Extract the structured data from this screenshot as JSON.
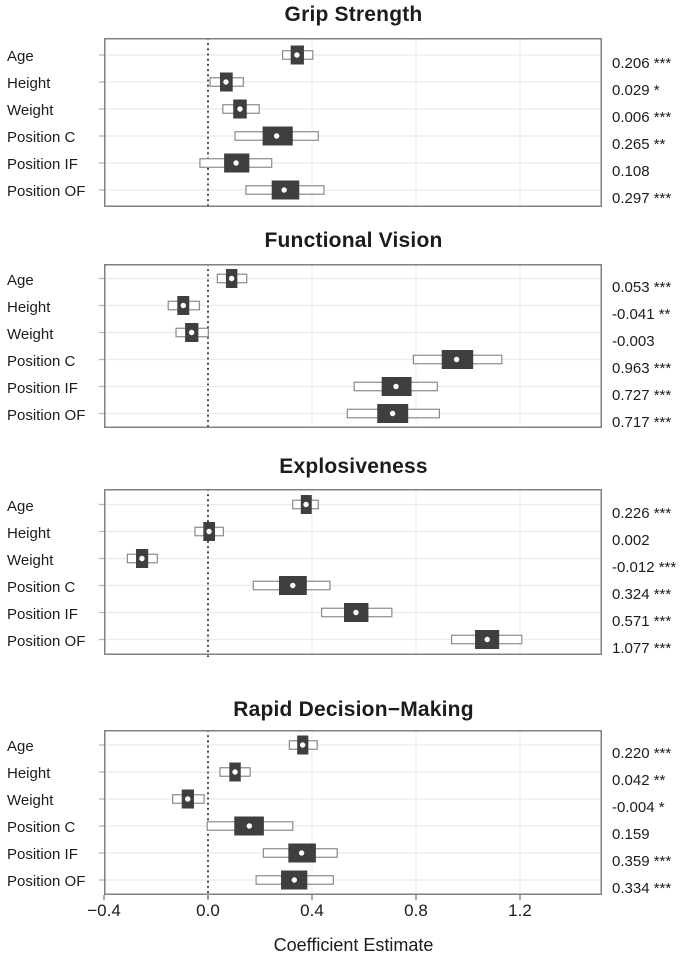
{
  "figure": {
    "xlabel": "Coefficient Estimate",
    "x_ticks": [
      {
        "v": -0.4,
        "label": "−0.4"
      },
      {
        "v": 0.0,
        "label": "0.0"
      },
      {
        "v": 0.4,
        "label": "0.4"
      },
      {
        "v": 0.8,
        "label": "0.8"
      },
      {
        "v": 1.2,
        "label": "1.2"
      }
    ],
    "xlim": [
      -0.4,
      1.515
    ],
    "colors": {
      "inner_box": "#3f3f3f",
      "outer_box_fill": "#ffffff",
      "outer_box_border": "#8a8a8a",
      "plot_border": "#808080",
      "grid": "#ebebeb",
      "axis_tick": "#b8b8b8",
      "bottom_tick": "#888888",
      "zero_line": "#161616",
      "point_dot": "#ffffff"
    }
  },
  "chart_data": [
    {
      "type": "forest-box",
      "title": "Grip Strength",
      "xlabel": "Coefficient Estimate",
      "categories": [
        "Age",
        "Height",
        "Weight",
        "Position C",
        "Position IF",
        "Position OF"
      ],
      "rows": [
        {
          "label": "Age",
          "estimate": "0.206 ***",
          "dot": 0.342,
          "inner": [
            0.318,
            0.369
          ],
          "outer": [
            0.287,
            0.403
          ]
        },
        {
          "label": "Height",
          "estimate": "0.029 *",
          "dot": 0.069,
          "inner": [
            0.046,
            0.095
          ],
          "outer": [
            0.008,
            0.136
          ]
        },
        {
          "label": "Weight",
          "estimate": "0.006 ***",
          "dot": 0.123,
          "inner": [
            0.097,
            0.149
          ],
          "outer": [
            0.057,
            0.197
          ]
        },
        {
          "label": "Position C",
          "estimate": "0.265 **",
          "dot": 0.264,
          "inner": [
            0.21,
            0.326
          ],
          "outer": [
            0.104,
            0.424
          ]
        },
        {
          "label": "Position IF",
          "estimate": "0.108",
          "dot": 0.108,
          "inner": [
            0.062,
            0.159
          ],
          "outer": [
            -0.031,
            0.245
          ]
        },
        {
          "label": "Position OF",
          "estimate": "0.297 ***",
          "dot": 0.293,
          "inner": [
            0.245,
            0.351
          ],
          "outer": [
            0.146,
            0.446
          ]
        }
      ]
    },
    {
      "type": "forest-box",
      "title": "Functional Vision",
      "xlabel": "Coefficient Estimate",
      "categories": [
        "Age",
        "Height",
        "Weight",
        "Position C",
        "Position IF",
        "Position OF"
      ],
      "rows": [
        {
          "label": "Age",
          "estimate": "0.053 ***",
          "dot": 0.091,
          "inner": [
            0.069,
            0.113
          ],
          "outer": [
            0.036,
            0.149
          ]
        },
        {
          "label": "Height",
          "estimate": "-0.041 **",
          "dot": -0.095,
          "inner": [
            -0.118,
            -0.072
          ],
          "outer": [
            -0.153,
            -0.033
          ]
        },
        {
          "label": "Weight",
          "estimate": "-0.003",
          "dot": -0.063,
          "inner": [
            -0.088,
            -0.037
          ],
          "outer": [
            -0.123,
            0.001
          ]
        },
        {
          "label": "Position C",
          "estimate": "0.963 ***",
          "dot": 0.956,
          "inner": [
            0.899,
            1.02
          ],
          "outer": [
            0.79,
            1.13
          ]
        },
        {
          "label": "Position IF",
          "estimate": "0.727 ***",
          "dot": 0.723,
          "inner": [
            0.668,
            0.783
          ],
          "outer": [
            0.562,
            0.882
          ]
        },
        {
          "label": "Position OF",
          "estimate": "0.717 ***",
          "dot": 0.71,
          "inner": [
            0.651,
            0.77
          ],
          "outer": [
            0.536,
            0.89
          ]
        }
      ]
    },
    {
      "type": "forest-box",
      "title": "Explosiveness",
      "xlabel": "Coefficient Estimate",
      "categories": [
        "Age",
        "Height",
        "Weight",
        "Position C",
        "Position IF",
        "Position OF"
      ],
      "rows": [
        {
          "label": "Age",
          "estimate": "0.226 ***",
          "dot": 0.377,
          "inner": [
            0.357,
            0.399
          ],
          "outer": [
            0.326,
            0.424
          ]
        },
        {
          "label": "Height",
          "estimate": "0.002",
          "dot": 0.004,
          "inner": [
            -0.018,
            0.027
          ],
          "outer": [
            -0.05,
            0.059
          ]
        },
        {
          "label": "Weight",
          "estimate": "-0.012 ***",
          "dot": -0.254,
          "inner": [
            -0.277,
            -0.23
          ],
          "outer": [
            -0.31,
            -0.195
          ]
        },
        {
          "label": "Position C",
          "estimate": "0.324 ***",
          "dot": 0.326,
          "inner": [
            0.273,
            0.38
          ],
          "outer": [
            0.174,
            0.469
          ]
        },
        {
          "label": "Position IF",
          "estimate": "0.571 ***",
          "dot": 0.569,
          "inner": [
            0.523,
            0.617
          ],
          "outer": [
            0.437,
            0.707
          ]
        },
        {
          "label": "Position OF",
          "estimate": "1.077 ***",
          "dot": 1.074,
          "inner": [
            1.027,
            1.12
          ],
          "outer": [
            0.937,
            1.207
          ]
        }
      ]
    },
    {
      "type": "forest-box",
      "title": "Rapid Decision−Making",
      "xlabel": "Coefficient Estimate",
      "categories": [
        "Age",
        "Height",
        "Weight",
        "Position C",
        "Position IF",
        "Position OF"
      ],
      "rows": [
        {
          "label": "Age",
          "estimate": "0.220 ***",
          "dot": 0.364,
          "inner": [
            0.343,
            0.386
          ],
          "outer": [
            0.313,
            0.42
          ]
        },
        {
          "label": "Height",
          "estimate": "0.042 **",
          "dot": 0.104,
          "inner": [
            0.082,
            0.126
          ],
          "outer": [
            0.046,
            0.162
          ]
        },
        {
          "label": "Weight",
          "estimate": "-0.004 *",
          "dot": -0.078,
          "inner": [
            -0.101,
            -0.054
          ],
          "outer": [
            -0.136,
            -0.015
          ]
        },
        {
          "label": "Position C",
          "estimate": "0.159",
          "dot": 0.159,
          "inner": [
            0.101,
            0.215
          ],
          "outer": [
            -0.003,
            0.326
          ]
        },
        {
          "label": "Position IF",
          "estimate": "0.359 ***",
          "dot": 0.36,
          "inner": [
            0.309,
            0.415
          ],
          "outer": [
            0.213,
            0.497
          ]
        },
        {
          "label": "Position OF",
          "estimate": "0.334 ***",
          "dot": 0.332,
          "inner": [
            0.281,
            0.382
          ],
          "outer": [
            0.185,
            0.482
          ]
        }
      ]
    }
  ]
}
